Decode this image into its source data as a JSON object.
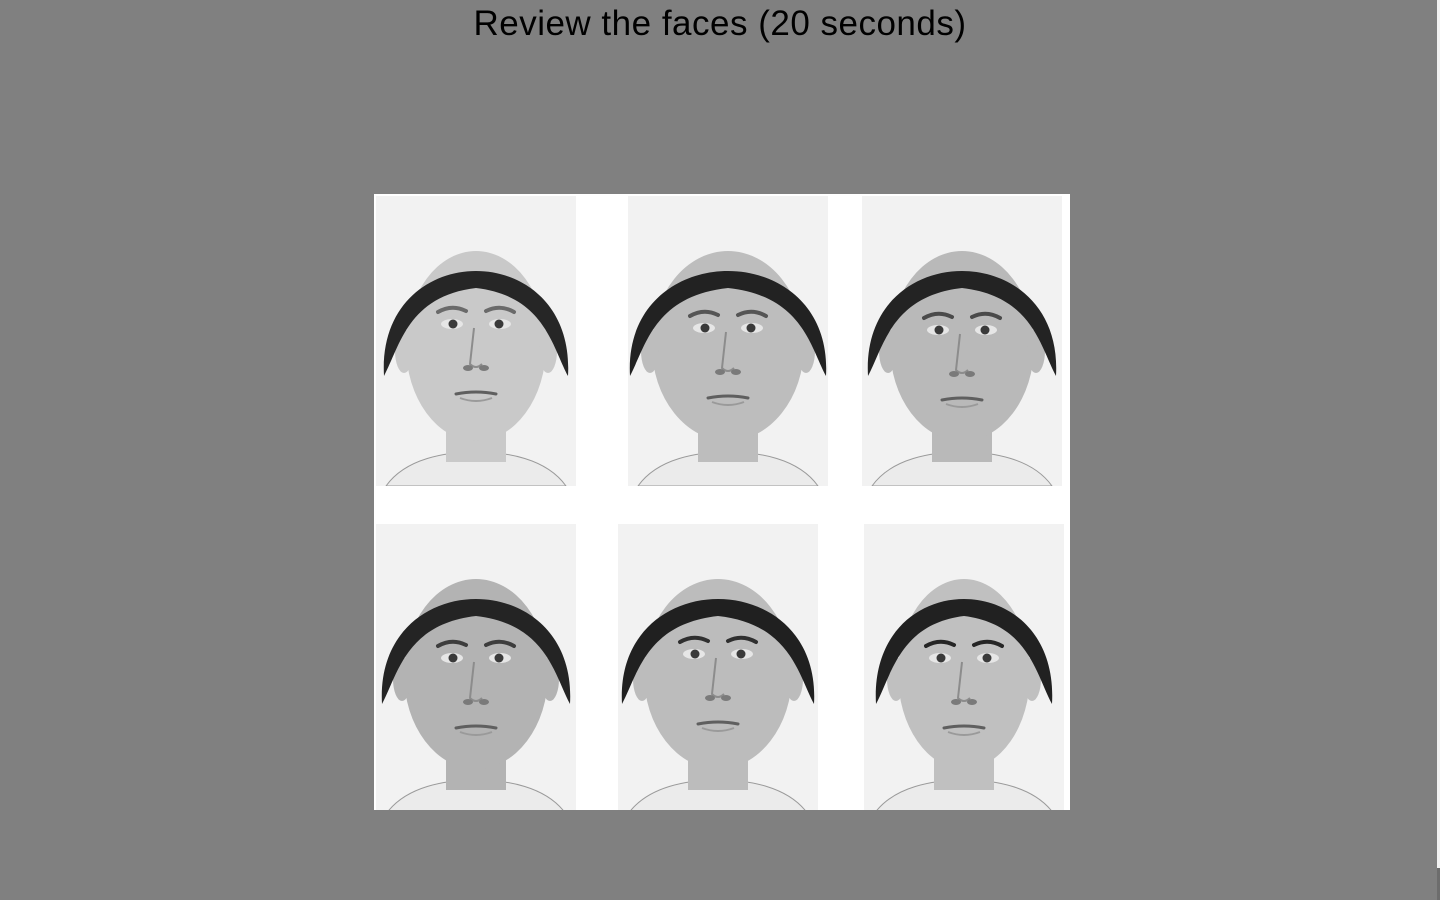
{
  "instruction": {
    "text": "Review the faces (20 seconds)"
  },
  "lineup": {
    "faces": [
      {
        "id": "face-1"
      },
      {
        "id": "face-2"
      },
      {
        "id": "face-3"
      },
      {
        "id": "face-4"
      },
      {
        "id": "face-5"
      },
      {
        "id": "face-6"
      }
    ]
  },
  "colors": {
    "background": "#808080",
    "photo_background": "#ffffff",
    "text": "#000000"
  }
}
